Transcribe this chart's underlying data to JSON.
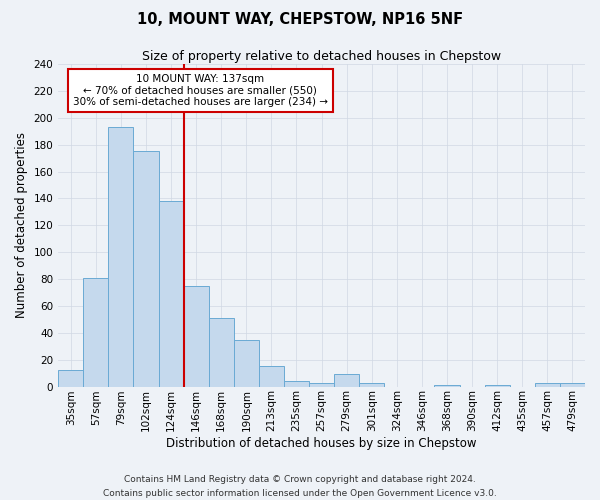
{
  "title": "10, MOUNT WAY, CHEPSTOW, NP16 5NF",
  "subtitle": "Size of property relative to detached houses in Chepstow",
  "xlabel": "Distribution of detached houses by size in Chepstow",
  "ylabel": "Number of detached properties",
  "bar_labels": [
    "35sqm",
    "57sqm",
    "79sqm",
    "102sqm",
    "124sqm",
    "146sqm",
    "168sqm",
    "190sqm",
    "213sqm",
    "235sqm",
    "257sqm",
    "279sqm",
    "301sqm",
    "324sqm",
    "346sqm",
    "368sqm",
    "390sqm",
    "412sqm",
    "435sqm",
    "457sqm",
    "479sqm"
  ],
  "bar_values": [
    12,
    81,
    193,
    175,
    138,
    75,
    51,
    35,
    15,
    4,
    3,
    9,
    3,
    0,
    0,
    1,
    0,
    1,
    0,
    3,
    3
  ],
  "bar_color": "#c5d9ed",
  "bar_edge_color": "#6aaad4",
  "vline_color": "#cc0000",
  "annotation_title": "10 MOUNT WAY: 137sqm",
  "annotation_line1": "← 70% of detached houses are smaller (550)",
  "annotation_line2": "30% of semi-detached houses are larger (234) →",
  "annotation_box_facecolor": "#ffffff",
  "annotation_box_edgecolor": "#cc0000",
  "ylim": [
    0,
    240
  ],
  "yticks": [
    0,
    20,
    40,
    60,
    80,
    100,
    120,
    140,
    160,
    180,
    200,
    220,
    240
  ],
  "footer_line1": "Contains HM Land Registry data © Crown copyright and database right 2024.",
  "footer_line2": "Contains public sector information licensed under the Open Government Licence v3.0.",
  "background_color": "#eef2f7",
  "plot_background": "#eef2f7",
  "grid_color": "#d0d8e4",
  "title_fontsize": 10.5,
  "subtitle_fontsize": 9,
  "axis_label_fontsize": 8.5,
  "tick_fontsize": 7.5,
  "annotation_fontsize": 7.5,
  "footer_fontsize": 6.5
}
